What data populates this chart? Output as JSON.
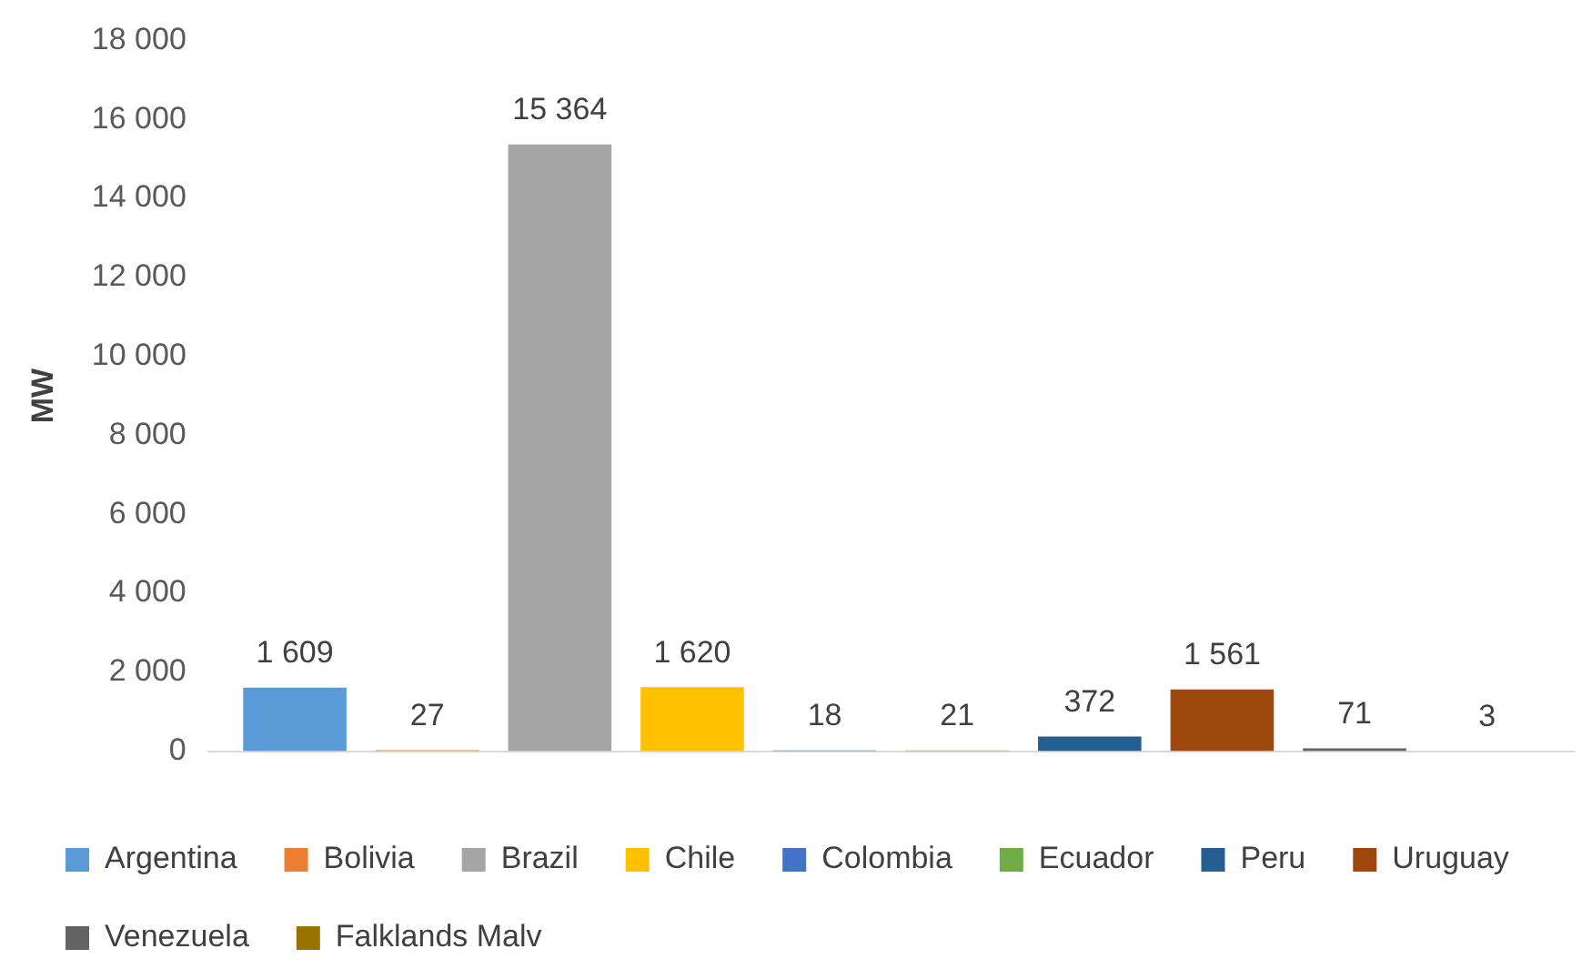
{
  "chart_data": {
    "type": "bar",
    "ylabel": "MW",
    "categories": [
      null
    ],
    "ylim": [
      0,
      18000
    ],
    "yticks": [
      {
        "value": 0,
        "label": "0"
      },
      {
        "value": 2000,
        "label": "2 000"
      },
      {
        "value": 4000,
        "label": "4 000"
      },
      {
        "value": 6000,
        "label": "6 000"
      },
      {
        "value": 8000,
        "label": "8 000"
      },
      {
        "value": 10000,
        "label": "10 000"
      },
      {
        "value": 12000,
        "label": "12 000"
      },
      {
        "value": 14000,
        "label": "14 000"
      },
      {
        "value": 16000,
        "label": "16 000"
      },
      {
        "value": 18000,
        "label": "18 000"
      }
    ],
    "grid": false,
    "legend": "bottom",
    "series": [
      {
        "name": "Argentina",
        "color": "#5b9bd5",
        "values": [
          1609
        ],
        "value_labels": [
          "1 609"
        ]
      },
      {
        "name": "Bolivia",
        "color": "#ed7d31",
        "values": [
          27
        ],
        "value_labels": [
          "27"
        ]
      },
      {
        "name": "Brazil",
        "color": "#a5a5a5",
        "values": [
          15364
        ],
        "value_labels": [
          "15 364"
        ]
      },
      {
        "name": "Chile",
        "color": "#ffc000",
        "values": [
          1620
        ],
        "value_labels": [
          "1 620"
        ]
      },
      {
        "name": "Colombia",
        "color": "#4472c4",
        "values": [
          18
        ],
        "value_labels": [
          "18"
        ]
      },
      {
        "name": "Ecuador",
        "color": "#70ad47",
        "values": [
          21
        ],
        "value_labels": [
          "21"
        ]
      },
      {
        "name": "Peru",
        "color": "#255e91",
        "values": [
          372
        ],
        "value_labels": [
          "372"
        ]
      },
      {
        "name": "Uruguay",
        "color": "#9e480e",
        "values": [
          1561
        ],
        "value_labels": [
          "1 561"
        ]
      },
      {
        "name": "Venezuela",
        "color": "#636363",
        "values": [
          71
        ],
        "value_labels": [
          "71"
        ]
      },
      {
        "name": "Falklands Malv",
        "color": "#997300",
        "values": [
          3
        ],
        "value_labels": [
          "3"
        ]
      }
    ]
  }
}
